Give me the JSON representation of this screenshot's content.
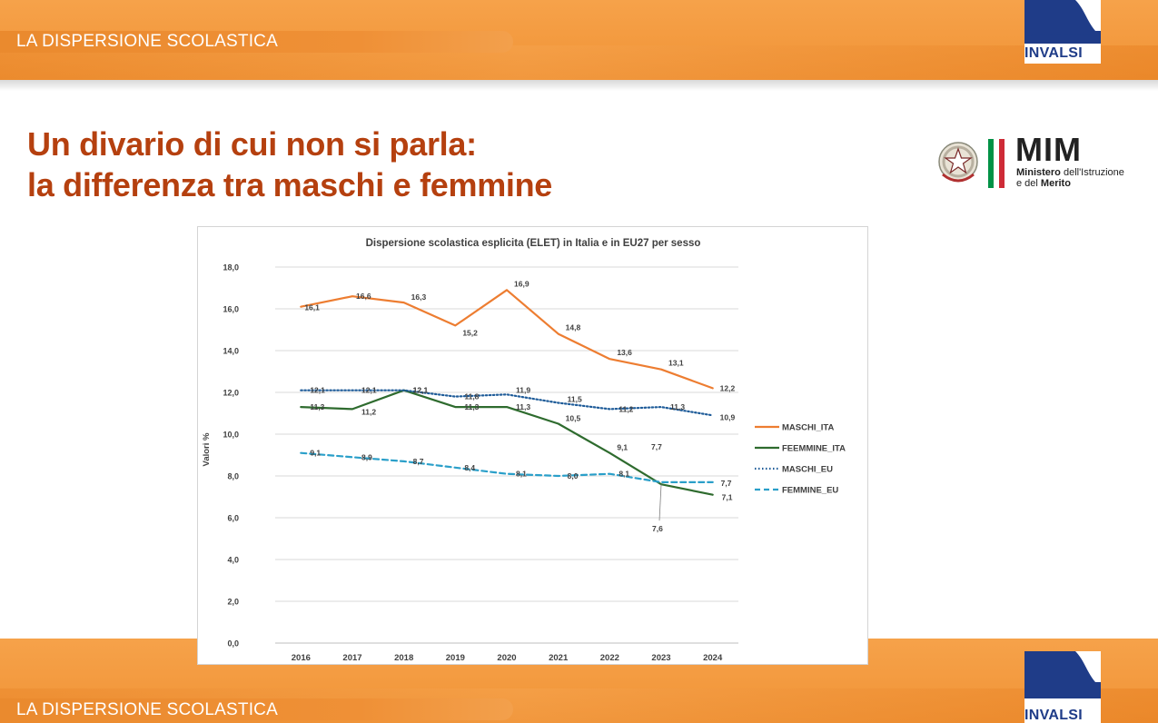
{
  "header": {
    "section_label": "LA DISPERSIONE SCOLASTICA",
    "logo_text": "INVALSI",
    "logo_brand_color": "#1f3c88",
    "band_color": "#f39a3f"
  },
  "slide": {
    "title_line1": "Un divario di cui non si parla:",
    "title_line2": "la differenza tra maschi e femmine",
    "title_color": "#b5400f"
  },
  "ministry": {
    "acronym": "MIM",
    "name_line1_bold": "Ministero",
    "name_line1_rest": " dell'Istruzione",
    "name_line2_prefix": "e del ",
    "name_line2_bold": "Merito",
    "emblem_icon": "italian-republic-emblem-icon",
    "flag_colors": [
      "#009246",
      "#ffffff",
      "#ce2b37"
    ]
  },
  "footer": {
    "section_label": "LA DISPERSIONE SCOLASTICA",
    "logo_text": "INVALSI"
  },
  "chart_data": {
    "type": "line",
    "title": "Dispersione scolastica esplicita (ELET) in Italia e in EU27 per sesso",
    "xlabel": "",
    "ylabel": "Valori %",
    "ylim": [
      0,
      18
    ],
    "yticks": [
      "0,0",
      "2,0",
      "4,0",
      "6,0",
      "8,0",
      "10,0",
      "12,0",
      "14,0",
      "16,0",
      "18,0"
    ],
    "categories": [
      "2016",
      "2017",
      "2018",
      "2019",
      "2020",
      "2021",
      "2022",
      "2023",
      "2024"
    ],
    "grid": true,
    "legend_position": "right",
    "series": [
      {
        "name": "MASCHI_ITA",
        "color": "#ed7d31",
        "dash": "solid",
        "values": [
          16.1,
          16.6,
          16.3,
          15.2,
          16.9,
          14.8,
          13.6,
          13.1,
          12.2
        ],
        "labels": [
          "16,1",
          "16,6",
          "16,3",
          "15,2",
          "16,9",
          "14,8",
          "13,6",
          "13,1",
          "12,2"
        ]
      },
      {
        "name": "FEEMMINE_ITA",
        "color": "#2e6b2e",
        "dash": "solid",
        "values": [
          11.3,
          11.2,
          12.1,
          11.3,
          11.3,
          10.5,
          9.1,
          7.6,
          7.1
        ],
        "labels": [
          "11,3",
          "11,2",
          "12,1",
          "11,3",
          "11,3",
          "10,5",
          "9,1",
          "7,6",
          "7,1"
        ]
      },
      {
        "name": "MASCHI_EU",
        "color": "#1f5c99",
        "dash": "dotted",
        "values": [
          12.1,
          12.1,
          12.1,
          11.8,
          11.9,
          11.5,
          11.2,
          11.3,
          10.9
        ],
        "labels": [
          "12,1",
          "12,1",
          "12,1",
          "11,8",
          "11,9",
          "11,5",
          "11,2",
          "11,3",
          "10,9"
        ]
      },
      {
        "name": "FEMMINE_EU",
        "color": "#2a9fc9",
        "dash": "dashed",
        "values": [
          9.1,
          8.9,
          8.7,
          8.4,
          8.1,
          8.0,
          8.1,
          7.7,
          7.7
        ],
        "labels": [
          "9,1",
          "8,9",
          "8,7",
          "8,4",
          "8,1",
          "8,0",
          "8,1",
          "7,7",
          "7,7"
        ]
      }
    ]
  }
}
